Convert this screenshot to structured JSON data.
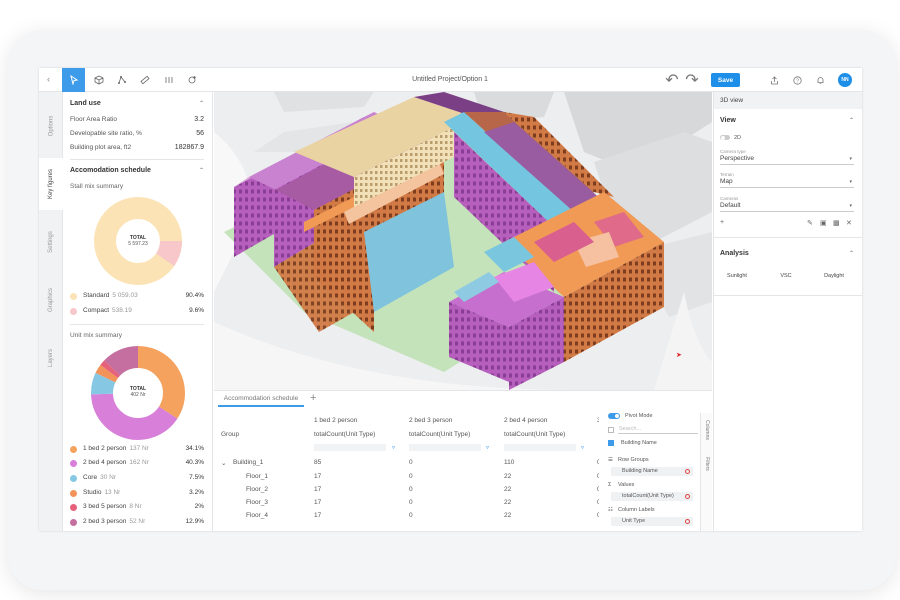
{
  "toolbar": {
    "back_icon": "chevron-left-icon",
    "tools": [
      {
        "name": "select-cursor-icon",
        "active": true
      },
      {
        "name": "cube-icon",
        "active": false
      },
      {
        "name": "polyline-icon",
        "active": false
      },
      {
        "name": "ruler-icon",
        "active": false
      },
      {
        "name": "columns-icon",
        "active": false
      },
      {
        "name": "sun-orbit-icon",
        "active": false
      }
    ],
    "title": "Untitled Project/Option 1",
    "save_label": "Save",
    "avatar_initials": "NN"
  },
  "left_tabs": [
    "Options",
    "Key figures",
    "Settings",
    "Graphics",
    "Layers"
  ],
  "active_left_tab": "Key figures",
  "land_use": {
    "title": "Land use",
    "rows": [
      {
        "label": "Floor Area Ratio",
        "value": "3.2"
      },
      {
        "label": "Developable site ratio, %",
        "value": "56"
      },
      {
        "label": "Building plot area, ft2",
        "value": "182867.9"
      }
    ]
  },
  "accommodation": {
    "title": "Accomodation schedule",
    "stall_title": "Stall mix summary",
    "stall_total_label": "TOTAL",
    "stall_total_value": "5 597.23",
    "stall_legend": [
      {
        "name": "Standard",
        "value": "5 059.03",
        "pct": "90.4%",
        "color": "#fbe3b6"
      },
      {
        "name": "Compact",
        "value": "538.19",
        "pct": "9.6%",
        "color": "#f7c7c9"
      }
    ],
    "unit_title": "Unit mix summary",
    "unit_total_label": "TOTAL",
    "unit_total_value": "402 Nr",
    "unit_legend": [
      {
        "name": "1 bed 2 person",
        "value": "137 Nr",
        "pct": "34.1%",
        "color": "#f4a25e"
      },
      {
        "name": "2 bed 4 person",
        "value": "162 Nr",
        "pct": "40.3%",
        "color": "#d77fd9"
      },
      {
        "name": "Core",
        "value": "30 Nr",
        "pct": "7.5%",
        "color": "#86c8e4"
      },
      {
        "name": "Studio",
        "value": "13 Nr",
        "pct": "3.2%",
        "color": "#f2935a"
      },
      {
        "name": "3 bed 5 person",
        "value": "8 Nr",
        "pct": "2%",
        "color": "#e6617a"
      },
      {
        "name": "2 bed 3 person",
        "value": "52 Nr",
        "pct": "12.9%",
        "color": "#c46fa0"
      }
    ]
  },
  "grid": {
    "tab_label": "Accommodation schedule",
    "add_tab_icon": "plus-icon",
    "group_header": "Group",
    "columns": [
      {
        "title": "1 bed 2 person",
        "sub": "totalCount(Unit Type)"
      },
      {
        "title": "2 bed 3 person",
        "sub": "totalCount(Unit Type)"
      },
      {
        "title": "2 bed 4 person",
        "sub": "totalCount(Unit Type)"
      },
      {
        "title": "3 b",
        "sub": "to"
      }
    ],
    "rows": [
      {
        "name": "Building_1",
        "values": [
          "85",
          "0",
          "110",
          "0"
        ],
        "expandable": true
      },
      {
        "name": "Floor_1",
        "values": [
          "17",
          "0",
          "22",
          "0"
        ],
        "expandable": false
      },
      {
        "name": "Floor_2",
        "values": [
          "17",
          "0",
          "22",
          "0"
        ],
        "expandable": false
      },
      {
        "name": "Floor_3",
        "values": [
          "17",
          "0",
          "22",
          "0"
        ],
        "expandable": false
      },
      {
        "name": "Floor_4",
        "values": [
          "17",
          "0",
          "22",
          "0"
        ],
        "expandable": false
      }
    ]
  },
  "pivot": {
    "mode_label": "Pivot Mode",
    "search_placeholder": "Search...",
    "building_name": "Building Name",
    "row_groups_label": "Row Groups",
    "row_group_chip": "Building Name",
    "values_label": "Values",
    "values_chip": "totalCount(Unit Type)",
    "column_labels_label": "Column Labels",
    "column_chip": "Unit Type",
    "side_tabs": [
      "Columns",
      "Filters"
    ]
  },
  "right_panel": {
    "header": "3D view",
    "view_title": "View",
    "toggle_2d": "2D",
    "camera_type_label": "Camera type",
    "camera_type_value": "Perspective",
    "terrain_label": "Terrain",
    "terrain_value": "Map",
    "cameras_label": "Cameras",
    "cameras_value": "Default",
    "analysis_title": "Analysis",
    "analysis_buttons": [
      "Sunlight",
      "VSC",
      "Daylight"
    ]
  }
}
